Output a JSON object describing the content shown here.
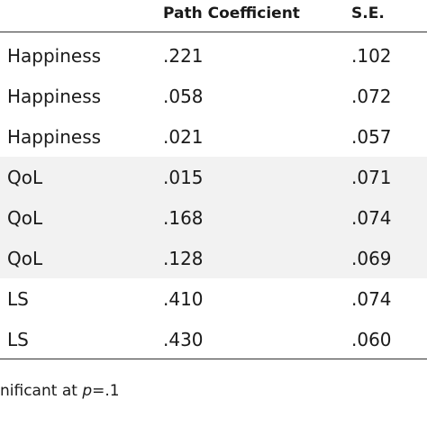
{
  "table": {
    "header": [
      "Path Coefficient",
      "S.E."
    ],
    "rows": [
      [
        "Happiness",
        ".221",
        ".102"
      ],
      [
        "Happiness",
        ".058",
        ".072"
      ],
      [
        "Happiness",
        ".021",
        ".057"
      ],
      [
        "QoL",
        ".015",
        ".071"
      ],
      [
        "QoL",
        ".168",
        ".074"
      ],
      [
        "QoL",
        ".128",
        ".069"
      ],
      [
        "LS",
        ".410",
        ".074"
      ],
      [
        "LS",
        ".430",
        ".060"
      ]
    ]
  },
  "footnote": {
    "before": "nificant at ",
    "italic": "p",
    "after": "=.1"
  }
}
